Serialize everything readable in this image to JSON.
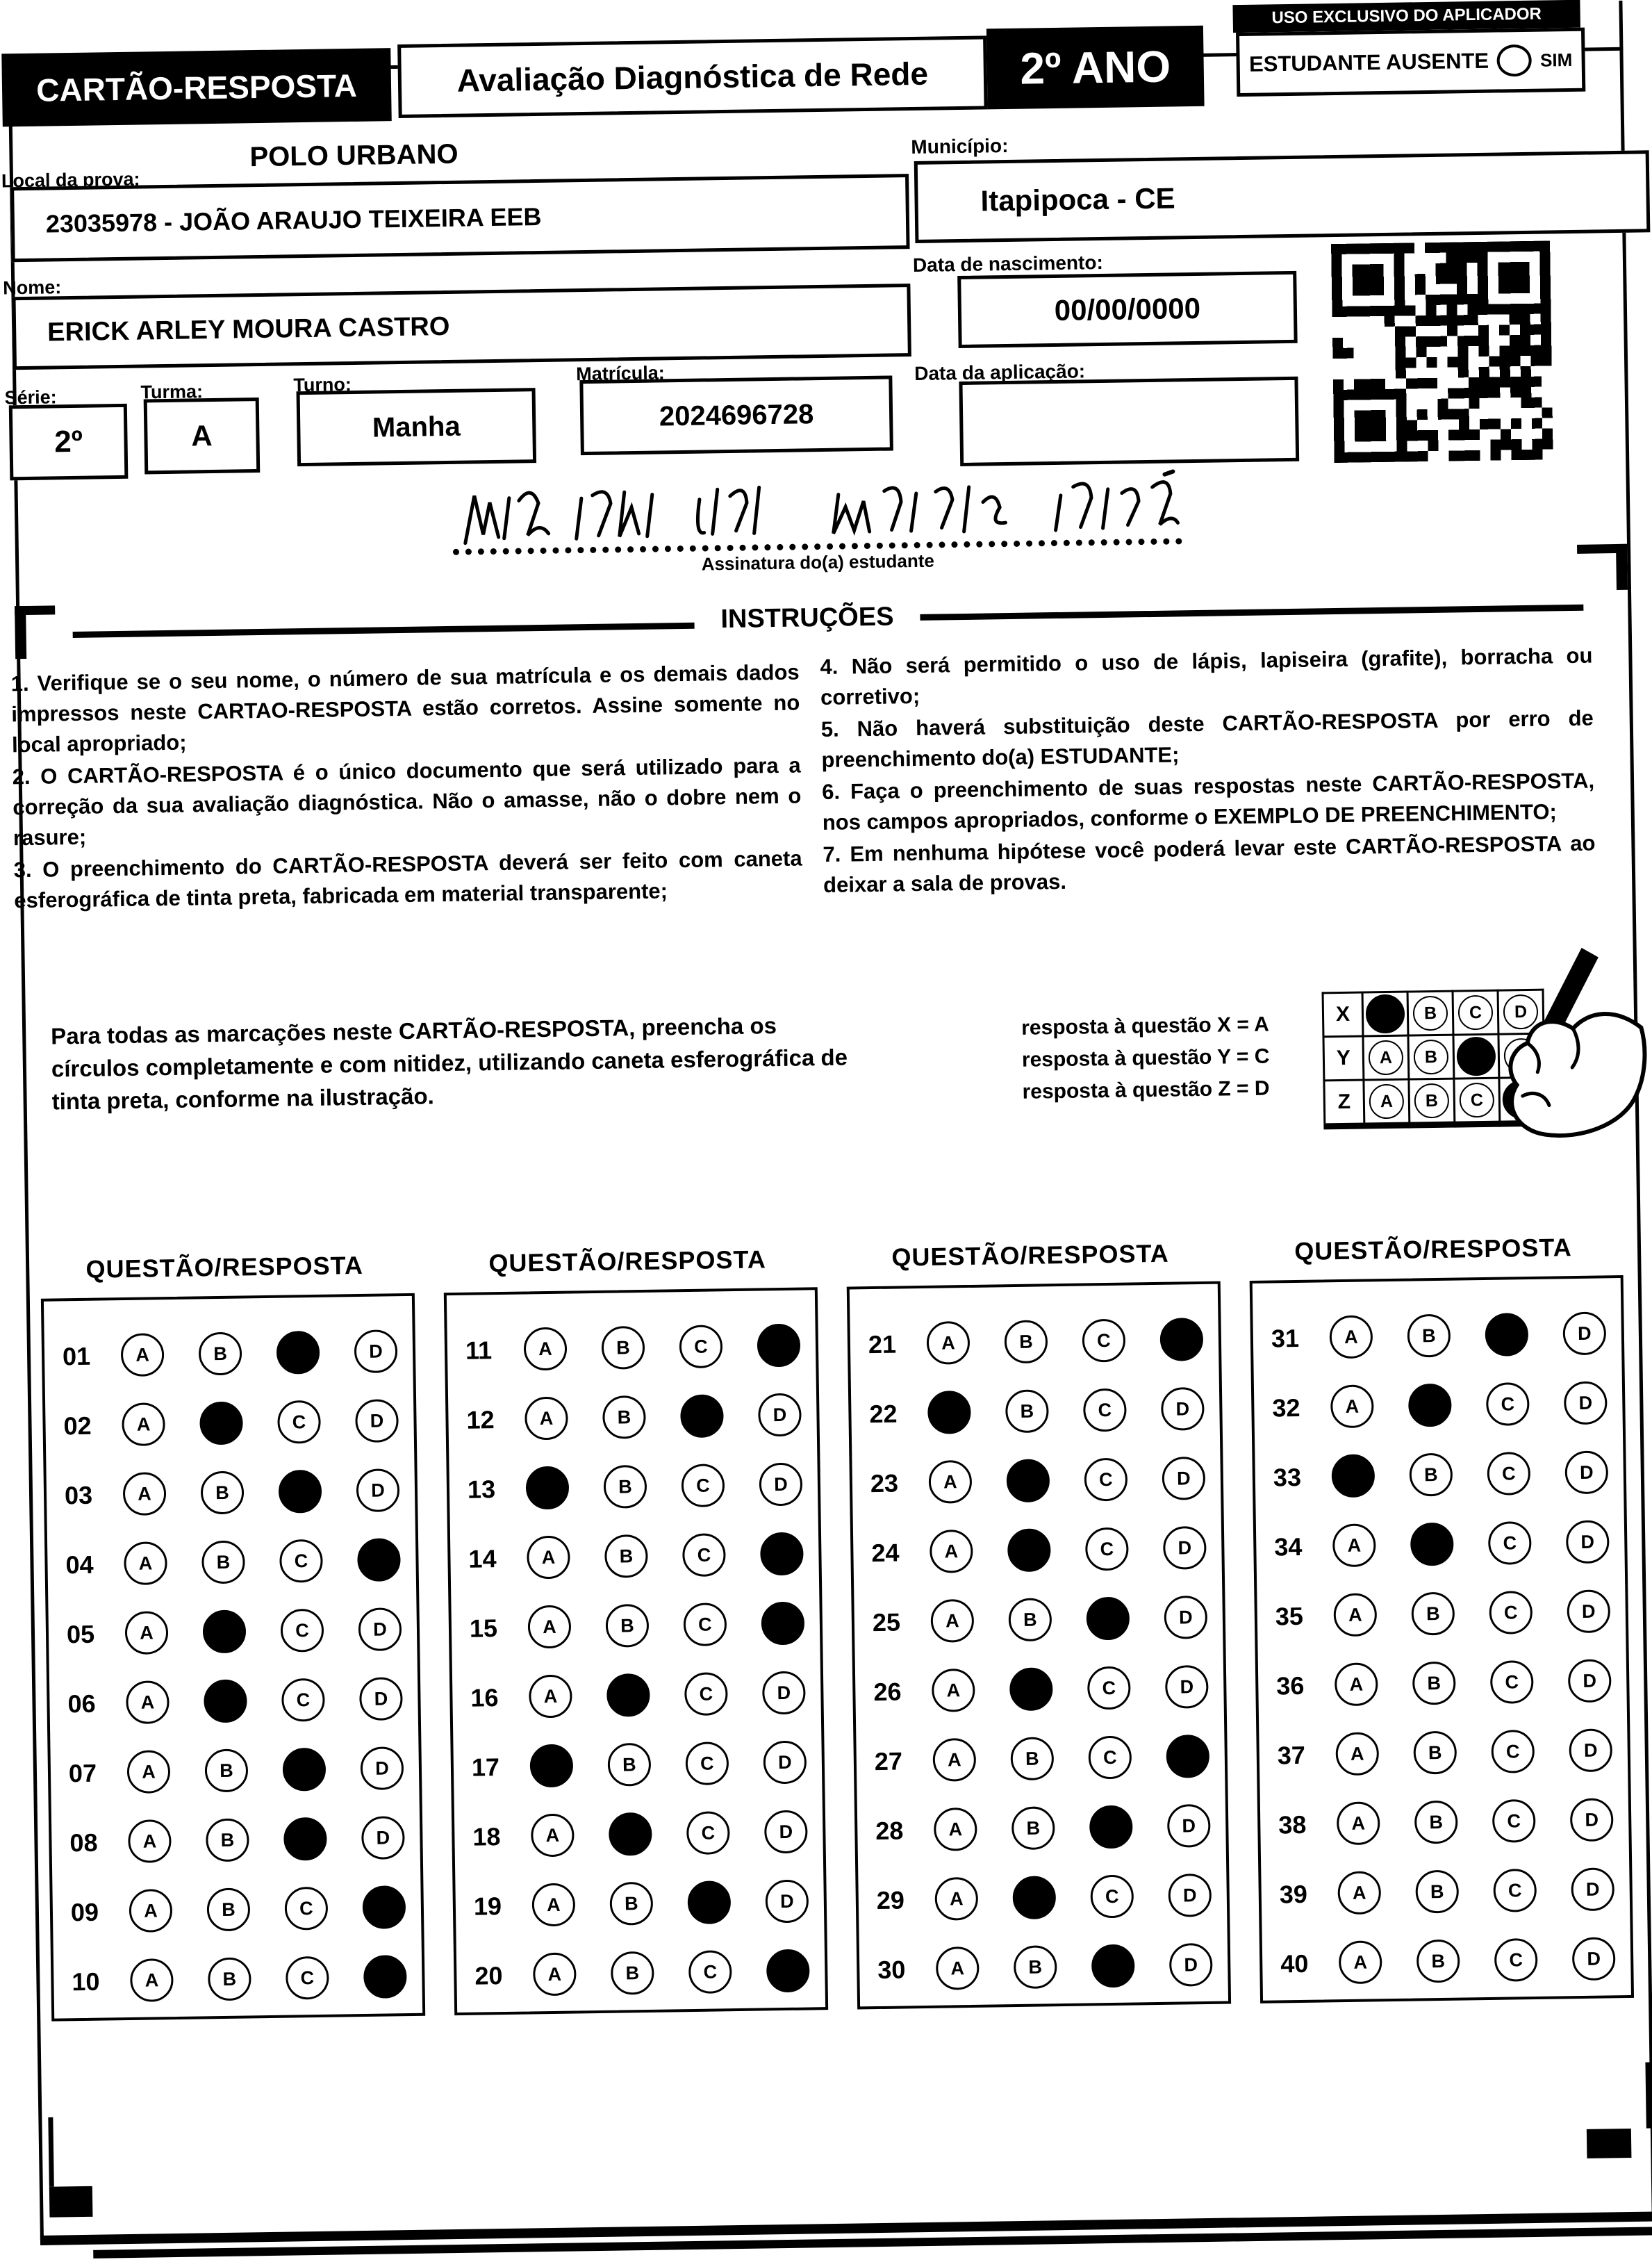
{
  "header": {
    "card_title": "CARTÃO-RESPOSTA",
    "exam_title": "Avaliação Diagnóstica de Rede",
    "grade": "2º ANO",
    "aplicador_box_title": "USO EXCLUSIVO DO APLICADOR",
    "absent_label": "ESTUDANTE AUSENTE",
    "absent_option": "SIM"
  },
  "student": {
    "local_label": "Local da prova:",
    "polo": "POLO URBANO",
    "school": "23035978 - JOÃO ARAUJO TEIXEIRA EEB",
    "municipio_label": "Município:",
    "municipio": "Itapipoca - CE",
    "nome_label": "Nome:",
    "nome": "ERICK ARLEY MOURA CASTRO",
    "nascimento_label": "Data de nascimento:",
    "nascimento": "00/00/0000",
    "aplicacao_label": "Data da aplicação:",
    "aplicacao": "",
    "serie_label": "Série:",
    "serie": "2º",
    "turma_label": "Turma:",
    "turma": "A",
    "turno_label": "Turno:",
    "turno": "Manha",
    "matricula_label": "Matrícula:",
    "matricula": "2024696728",
    "assinatura_label": "Assinatura do(a) estudante"
  },
  "instructions": {
    "title": "INSTRUÇÕES",
    "left": [
      "1. Verifique se o seu nome, o número de sua matrícula e os demais dados impressos neste CARTAO-RESPOSTA estão corretos. Assine somente no local apropriado;",
      "2. O CARTÃO-RESPOSTA é o único documento que será utilizado para a correção da sua avaliação diagnóstica. Não o amasse, não o dobre nem o rasure;",
      "3. O preenchimento do CARTÃO-RESPOSTA deverá ser feito com caneta esferográfica de tinta preta, fabricada em material transparente;"
    ],
    "right": [
      "4. Não será permitido o uso de lápis, lapiseira (grafite), borracha ou corretivo;",
      "5. Não haverá substituição deste CARTÃO-RESPOSTA por erro de preenchimento do(a) ESTUDANTE;",
      "6. Faça o preenchimento de suas respostas neste CARTÃO-RESPOSTA, nos campos apropriados, conforme o EXEMPLO DE PREENCHIMENTO;",
      "7. Em nenhuma hipótese você poderá levar este CARTÃO-RESPOSTA ao deixar a sala de provas."
    ]
  },
  "example": {
    "text": "Para todas as marcações neste CARTÃO-RESPOSTA, preencha os círculos completamente e com nitidez, utilizando caneta esferográfica de tinta preta, conforme na ilustração.",
    "legend": [
      "resposta à questão X = A",
      "resposta à questão Y = C",
      "resposta à questão Z = D"
    ],
    "rows": [
      {
        "label": "X",
        "marked": "A"
      },
      {
        "label": "Y",
        "marked": "C"
      },
      {
        "label": "Z",
        "marked": "D"
      }
    ]
  },
  "answers": {
    "section_title": "QUESTÃO/RESPOSTA",
    "options": [
      "A",
      "B",
      "C",
      "D"
    ],
    "columns": [
      {
        "questions": [
          {
            "n": "01",
            "marked": "C"
          },
          {
            "n": "02",
            "marked": "B"
          },
          {
            "n": "03",
            "marked": "C"
          },
          {
            "n": "04",
            "marked": "D"
          },
          {
            "n": "05",
            "marked": "B"
          },
          {
            "n": "06",
            "marked": "B"
          },
          {
            "n": "07",
            "marked": "C"
          },
          {
            "n": "08",
            "marked": "C"
          },
          {
            "n": "09",
            "marked": "D"
          },
          {
            "n": "10",
            "marked": "D"
          }
        ]
      },
      {
        "questions": [
          {
            "n": "11",
            "marked": "D"
          },
          {
            "n": "12",
            "marked": "C"
          },
          {
            "n": "13",
            "marked": "A"
          },
          {
            "n": "14",
            "marked": "D"
          },
          {
            "n": "15",
            "marked": "D"
          },
          {
            "n": "16",
            "marked": "B"
          },
          {
            "n": "17",
            "marked": "A"
          },
          {
            "n": "18",
            "marked": "B"
          },
          {
            "n": "19",
            "marked": "C"
          },
          {
            "n": "20",
            "marked": "D"
          }
        ]
      },
      {
        "questions": [
          {
            "n": "21",
            "marked": "D"
          },
          {
            "n": "22",
            "marked": "A"
          },
          {
            "n": "23",
            "marked": "B"
          },
          {
            "n": "24",
            "marked": "B"
          },
          {
            "n": "25",
            "marked": "C"
          },
          {
            "n": "26",
            "marked": "B"
          },
          {
            "n": "27",
            "marked": "D"
          },
          {
            "n": "28",
            "marked": "C"
          },
          {
            "n": "29",
            "marked": "B"
          },
          {
            "n": "30",
            "marked": "C"
          }
        ]
      },
      {
        "questions": [
          {
            "n": "31",
            "marked": "C"
          },
          {
            "n": "32",
            "marked": "B"
          },
          {
            "n": "33",
            "marked": "A"
          },
          {
            "n": "34",
            "marked": "B"
          },
          {
            "n": "35",
            "marked": null
          },
          {
            "n": "36",
            "marked": null
          },
          {
            "n": "37",
            "marked": null
          },
          {
            "n": "38",
            "marked": null
          },
          {
            "n": "39",
            "marked": null
          },
          {
            "n": "40",
            "marked": null
          }
        ]
      }
    ]
  }
}
